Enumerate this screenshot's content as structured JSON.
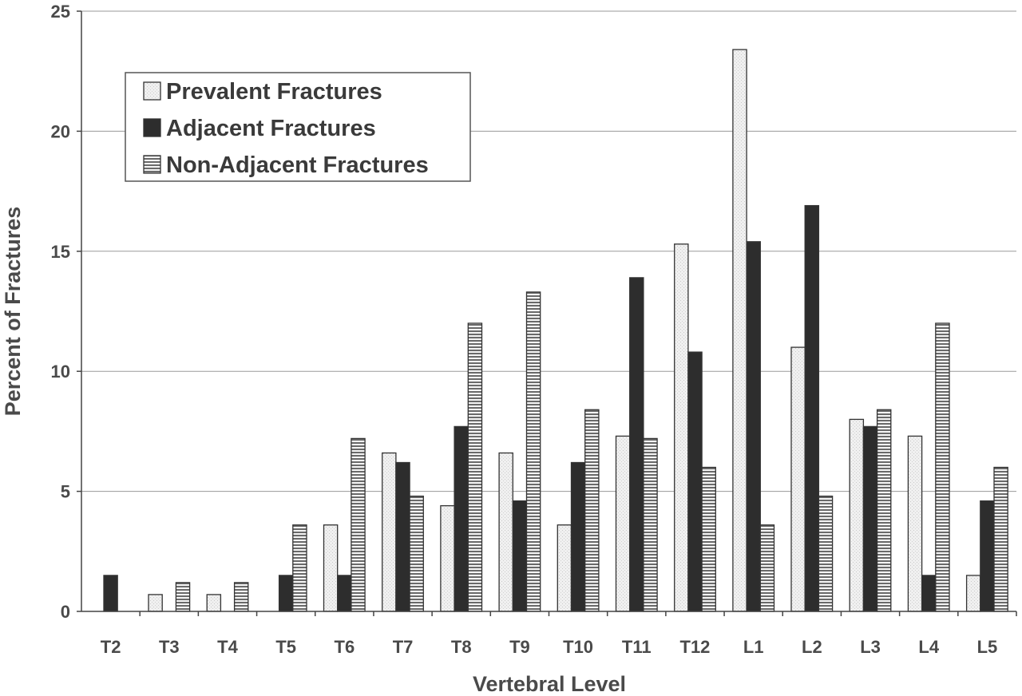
{
  "chart_data": {
    "type": "bar",
    "title": "",
    "xlabel": "Vertebral Level",
    "ylabel": "Percent of Fractures",
    "ylim": [
      0,
      25
    ],
    "yticks": [
      0,
      5,
      10,
      15,
      20,
      25
    ],
    "grid": true,
    "legend_position": "top-left",
    "categories": [
      "T2",
      "T3",
      "T4",
      "T5",
      "T6",
      "T7",
      "T8",
      "T9",
      "T10",
      "T11",
      "T12",
      "L1",
      "L2",
      "L3",
      "L4",
      "L5"
    ],
    "series": [
      {
        "name": "Prevalent Fractures",
        "style": "light-stipple",
        "color": "#eeeeee",
        "values": [
          0,
          0.7,
          0.7,
          0,
          3.6,
          6.6,
          4.4,
          6.6,
          3.6,
          7.3,
          15.3,
          23.4,
          11.0,
          8.0,
          7.3,
          1.5
        ]
      },
      {
        "name": "Adjacent Fractures",
        "style": "solid-dark",
        "color": "#333333",
        "values": [
          1.5,
          0,
          0,
          1.5,
          1.5,
          6.2,
          7.7,
          4.6,
          6.2,
          13.9,
          10.8,
          15.4,
          16.9,
          7.7,
          1.5,
          4.6
        ]
      },
      {
        "name": "Non-Adjacent Fractures",
        "style": "horizontal-stripes",
        "color": "#b5b5b5",
        "values": [
          0,
          1.2,
          1.2,
          3.6,
          7.2,
          4.8,
          12.0,
          13.3,
          8.4,
          7.2,
          6.0,
          3.6,
          4.8,
          8.4,
          12.0,
          6.0
        ]
      }
    ]
  }
}
